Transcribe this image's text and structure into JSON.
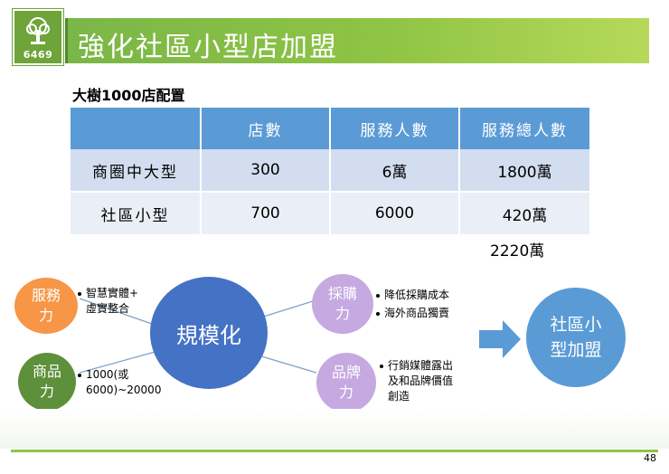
{
  "header": {
    "logo_number": "6469",
    "title": "強化社區小型店加盟"
  },
  "subtitle": "大樹1000店配置",
  "table": {
    "headers": [
      "",
      "店數",
      "服務人數",
      "服務總人數"
    ],
    "rows": [
      [
        "商圈中大型",
        "300",
        "6萬",
        "1800萬"
      ],
      [
        "社區小型",
        "700",
        "6000",
        "420萬"
      ]
    ],
    "total": "2220萬"
  },
  "diagram": {
    "center": "規模化",
    "service": {
      "label": "服務\n力",
      "bullets": [
        "智慧實體+\n虛實整合"
      ]
    },
    "product": {
      "label": "商品\n力",
      "bullets": [
        "1000(或\n6000)~20000"
      ]
    },
    "purchase": {
      "label": "採購\n力",
      "bullets": [
        "降低採購成本",
        "海外商品獨賣"
      ]
    },
    "brand": {
      "label": "品牌\n力",
      "bullets": [
        "行銷媒體露出\n及和品牌價值\n創造"
      ]
    },
    "result": "社區小\n型加盟"
  },
  "colors": {
    "green": "#7ab648",
    "blue_header": "#5b9bd5",
    "orange": "#f79646",
    "dark_green": "#5e8f3a",
    "purple": "#c5a9e0",
    "circle_blue": "#4472c4",
    "result_blue": "#5b9bd5"
  },
  "page_number": "48"
}
